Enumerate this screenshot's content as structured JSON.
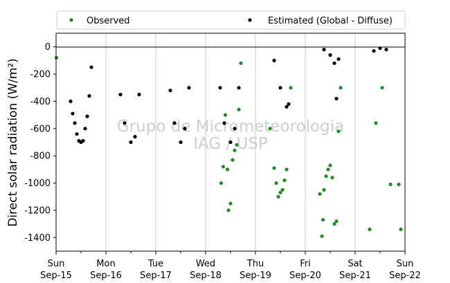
{
  "chart_data": {
    "type": "scatter",
    "ylabel": "Direct solar radiation (W/m²)",
    "watermark": [
      "Grupo de Micrometeorologia",
      "IAG / USP"
    ],
    "xlim": [
      "2019-09-15 00:00",
      "2019-09-22 00:00"
    ],
    "ylim": [
      -1500,
      100
    ],
    "yticks": [
      0,
      -200,
      -400,
      -600,
      -800,
      -1000,
      -1200,
      -1400
    ],
    "xticks": [
      {
        "day": "Sun",
        "date": "Sep-15"
      },
      {
        "day": "Mon",
        "date": "Sep-16"
      },
      {
        "day": "Tue",
        "date": "Sep-17"
      },
      {
        "day": "Wed",
        "date": "Sep-18"
      },
      {
        "day": "Thu",
        "date": "Sep-19"
      },
      {
        "day": "Fri",
        "date": "Sep-20"
      },
      {
        "day": "Sat",
        "date": "Sep-21"
      },
      {
        "day": "Sun",
        "date": "Sep-22"
      }
    ],
    "grid": "vertical",
    "legend_placement": "top",
    "series": [
      {
        "name": "Observed",
        "color": "#228B22",
        "points": [
          [
            "2019-09-15 00:10",
            -80
          ],
          [
            "2019-09-18 07:30",
            -1000
          ],
          [
            "2019-09-18 08:30",
            -880
          ],
          [
            "2019-09-18 09:30",
            -500
          ],
          [
            "2019-09-18 10:30",
            -900
          ],
          [
            "2019-09-18 11:00",
            -1200
          ],
          [
            "2019-09-18 12:00",
            -1150
          ],
          [
            "2019-09-18 13:00",
            -830
          ],
          [
            "2019-09-18 14:00",
            -760
          ],
          [
            "2019-09-18 15:00",
            -720
          ],
          [
            "2019-09-18 16:00",
            -460
          ],
          [
            "2019-09-18 17:00",
            -120
          ],
          [
            "2019-09-19 07:00",
            -600
          ],
          [
            "2019-09-19 09:00",
            -890
          ],
          [
            "2019-09-19 10:00",
            -1000
          ],
          [
            "2019-09-19 11:00",
            -1100
          ],
          [
            "2019-09-19 12:00",
            -1070
          ],
          [
            "2019-09-19 13:00",
            -1050
          ],
          [
            "2019-09-19 14:00",
            -980
          ],
          [
            "2019-09-19 15:00",
            -900
          ],
          [
            "2019-09-19 17:00",
            -300
          ],
          [
            "2019-09-20 07:00",
            -1080
          ],
          [
            "2019-09-20 08:00",
            -1390
          ],
          [
            "2019-09-20 08:30",
            -1270
          ],
          [
            "2019-09-20 09:00",
            -1050
          ],
          [
            "2019-09-20 10:00",
            -950
          ],
          [
            "2019-09-20 11:00",
            -900
          ],
          [
            "2019-09-20 12:00",
            -870
          ],
          [
            "2019-09-20 13:00",
            -960
          ],
          [
            "2019-09-20 14:00",
            -1300
          ],
          [
            "2019-09-20 15:00",
            -1280
          ],
          [
            "2019-09-20 16:00",
            -620
          ],
          [
            "2019-09-20 17:00",
            -300
          ],
          [
            "2019-09-21 07:00",
            -1340
          ],
          [
            "2019-09-21 10:00",
            -560
          ],
          [
            "2019-09-21 13:00",
            -300
          ],
          [
            "2019-09-21 17:00",
            -1010
          ],
          [
            "2019-09-21 21:00",
            -1010
          ],
          [
            "2019-09-21 22:00",
            -1340
          ]
        ]
      },
      {
        "name": "Estimated (Global - Diffuse)",
        "color": "#000000",
        "points": [
          [
            "2019-09-15 07:00",
            -400
          ],
          [
            "2019-09-15 08:00",
            -490
          ],
          [
            "2019-09-15 09:00",
            -560
          ],
          [
            "2019-09-15 10:00",
            -640
          ],
          [
            "2019-09-15 11:00",
            -690
          ],
          [
            "2019-09-15 12:00",
            -700
          ],
          [
            "2019-09-15 13:00",
            -690
          ],
          [
            "2019-09-15 14:00",
            -600
          ],
          [
            "2019-09-15 15:00",
            -510
          ],
          [
            "2019-09-15 16:00",
            -360
          ],
          [
            "2019-09-15 17:00",
            -150
          ],
          [
            "2019-09-16 07:00",
            -350
          ],
          [
            "2019-09-16 09:00",
            -560
          ],
          [
            "2019-09-16 12:00",
            -700
          ],
          [
            "2019-09-16 14:00",
            -660
          ],
          [
            "2019-09-16 16:00",
            -350
          ],
          [
            "2019-09-17 07:00",
            -320
          ],
          [
            "2019-09-17 09:00",
            -560
          ],
          [
            "2019-09-17 12:00",
            -700
          ],
          [
            "2019-09-17 14:00",
            -600
          ],
          [
            "2019-09-17 16:00",
            -300
          ],
          [
            "2019-09-18 07:00",
            -300
          ],
          [
            "2019-09-18 09:00",
            -560
          ],
          [
            "2019-09-18 12:00",
            -700
          ],
          [
            "2019-09-18 14:00",
            -600
          ],
          [
            "2019-09-18 16:00",
            -300
          ],
          [
            "2019-09-19 09:00",
            -100
          ],
          [
            "2019-09-19 12:00",
            -300
          ],
          [
            "2019-09-19 15:00",
            -440
          ],
          [
            "2019-09-19 16:00",
            -420
          ],
          [
            "2019-09-20 09:00",
            -20
          ],
          [
            "2019-09-20 12:00",
            -60
          ],
          [
            "2019-09-20 14:00",
            -120
          ],
          [
            "2019-09-20 15:00",
            -380
          ],
          [
            "2019-09-20 16:00",
            -90
          ],
          [
            "2019-09-21 09:00",
            -30
          ],
          [
            "2019-09-21 12:00",
            -10
          ],
          [
            "2019-09-21 15:00",
            -20
          ]
        ]
      }
    ]
  }
}
